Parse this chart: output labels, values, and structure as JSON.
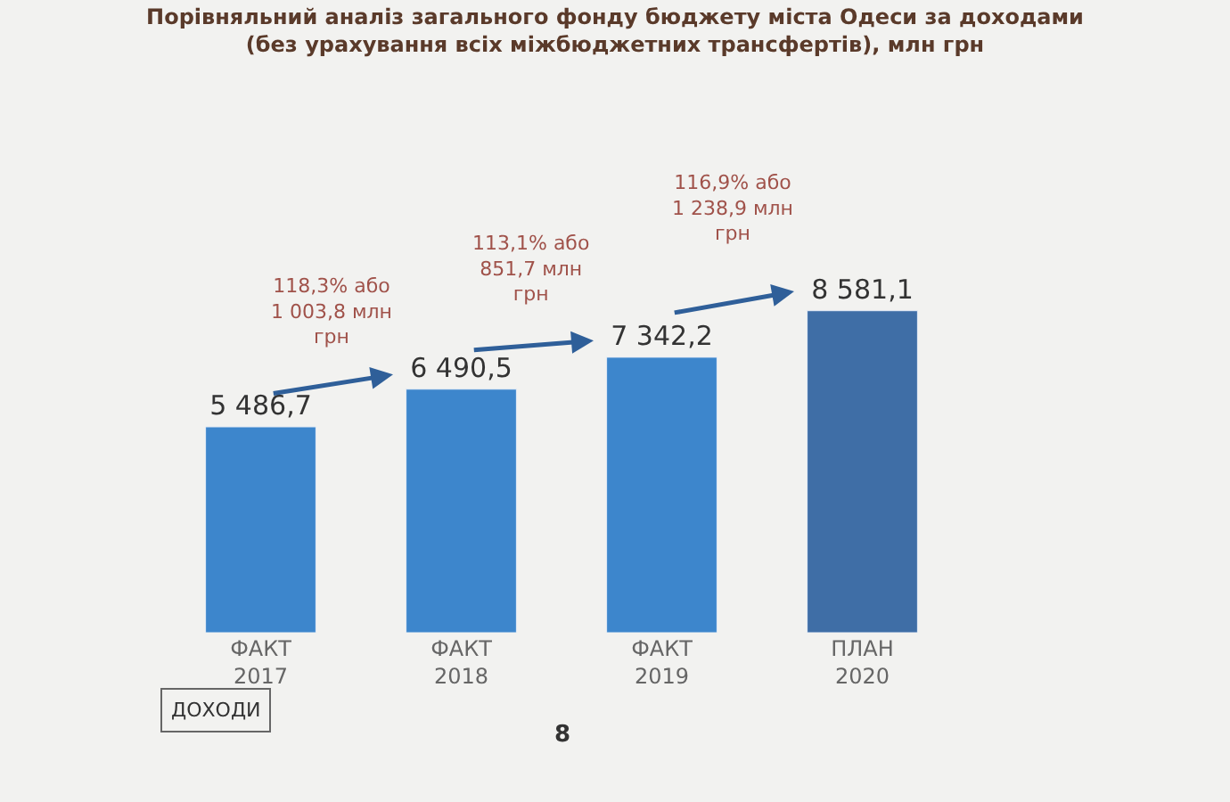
{
  "chart_data": {
    "type": "bar",
    "title": "Порівняльний аналіз загального фонду бюджету міста Одеси за доходами\n(без урахування всіх міжбюджетних трансфертів), млн грн",
    "categories": [
      "ФАКТ\n2017",
      "ФАКТ\n2018",
      "ФАКТ\n2019",
      "ПЛАН\n2020"
    ],
    "values": [
      5486.7,
      6490.5,
      7342.2,
      8581.1
    ],
    "value_labels": [
      "5 486,7",
      "6 490,5",
      "7 342,2",
      "8 581,1"
    ],
    "colors": [
      "#3d86cc",
      "#3d86cc",
      "#3d86cc",
      "#3f6ea6"
    ],
    "annotations": [
      "118,3% або\n1 003,8 млн\nгрн",
      "113,1% або\n851,7 млн\nгрн",
      "116,9% або\n1 238,9 млн\nгрн",
      "ДОХОДИ",
      "8"
    ]
  }
}
